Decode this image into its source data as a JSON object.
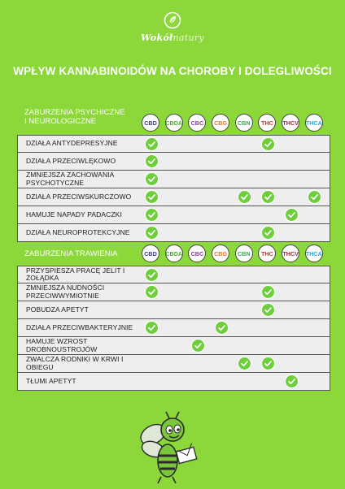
{
  "brand": {
    "name_bold": "Wokół",
    "name_rest": "natury"
  },
  "title": "WPŁYW KANNABINOIDÓW NA CHOROBY I DOLEGLIWOŚCI",
  "cannabinoids": [
    {
      "label": "CBD",
      "color": "#3a3a8c"
    },
    {
      "label": "CBDA",
      "color": "#55a83a"
    },
    {
      "label": "CBC",
      "color": "#8a3a9c"
    },
    {
      "label": "CBG",
      "color": "#e07a2a"
    },
    {
      "label": "CBN",
      "color": "#3aa85a"
    },
    {
      "label": "THC",
      "color": "#d0302a"
    },
    {
      "label": "THCV",
      "color": "#9c2a3a"
    },
    {
      "label": "THCA",
      "color": "#2aa8d0"
    }
  ],
  "sections": [
    {
      "title_line1": "ZABURZENIA PSYCHICZNE",
      "title_line2": "I NEUROLOGICZNE",
      "rows": [
        {
          "label": "DZIAŁA  ANTYDEPRESYJNE",
          "checks": [
            0,
            5
          ]
        },
        {
          "label": "DZIAŁA  PRZECIWLĘKOWO",
          "checks": [
            0
          ]
        },
        {
          "label": "ZMNIEJSZA ZACHOWANIA PSYCHOTYCZNE",
          "checks": [
            0
          ]
        },
        {
          "label": "DZIAŁA  PRZECIWSKURCZOWO",
          "checks": [
            0,
            4,
            5,
            7
          ]
        },
        {
          "label": "HAMUJE NAPADY PADACZKI",
          "checks": [
            0,
            6
          ]
        },
        {
          "label": "DZIAŁA NEUROPROTEKCYJNE",
          "checks": [
            0,
            5
          ]
        }
      ]
    },
    {
      "title_line1": "ZABURZENIA TRAWIENIA",
      "title_line2": "",
      "rows": [
        {
          "label": "PRZYSPIESZA PRACĘ JELIT I ŻOŁĄDKA",
          "checks": [
            0
          ]
        },
        {
          "label": "ZMNIEJSZA NUDNOŚCI PRZECIWWYMIOTNIE",
          "checks": [
            0,
            5
          ]
        },
        {
          "label": "POBUDZA APETYT",
          "checks": [
            5
          ]
        },
        {
          "label": "DZIAŁA PRZECIWBAKTERYJNIE",
          "checks": [
            0,
            3
          ]
        },
        {
          "label": "HAMUJE WZROST DROBNOUSTROJÓW",
          "checks": [
            2
          ]
        },
        {
          "label": "ZWALCZA RODNIKI W KRWI I OBIEGU",
          "checks": [
            4,
            5
          ]
        },
        {
          "label": "TŁUMI APETYT",
          "checks": [
            6
          ]
        }
      ]
    }
  ]
}
